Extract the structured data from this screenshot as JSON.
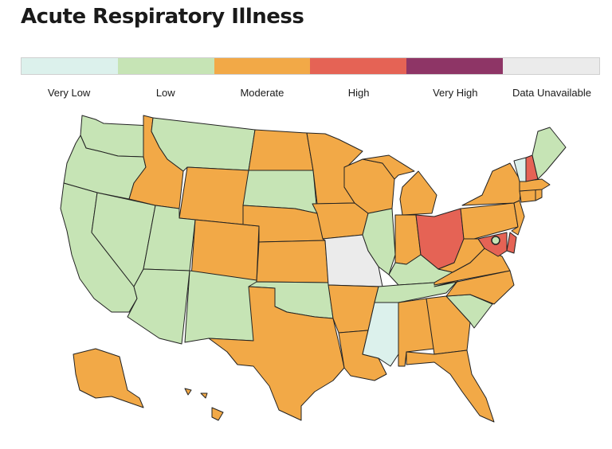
{
  "title": "Acute Respiratory Illness",
  "legend": [
    {
      "label": "Very Low",
      "color": "#dcf1ec"
    },
    {
      "label": "Low",
      "color": "#c6e4b5"
    },
    {
      "label": "Moderate",
      "color": "#f2a947"
    },
    {
      "label": "High",
      "color": "#e56355"
    },
    {
      "label": "Very High",
      "color": "#8e3566"
    },
    {
      "label": "Data Unavailable",
      "color": "#ebebeb"
    }
  ],
  "states": {
    "WA": "Low",
    "OR": "Low",
    "CA": "Low",
    "NV": "Low",
    "ID": "Moderate",
    "MT": "Low",
    "WY": "Moderate",
    "UT": "Low",
    "AZ": "Low",
    "CO": "Moderate",
    "NM": "Low",
    "ND": "Moderate",
    "SD": "Low",
    "NE": "Moderate",
    "KS": "Moderate",
    "OK": "Low",
    "TX": "Moderate",
    "MN": "Moderate",
    "IA": "Moderate",
    "MO": "Data Unavailable",
    "AR": "Moderate",
    "LA": "Moderate",
    "WI": "Moderate",
    "IL": "Low",
    "MI": "Moderate",
    "IN": "Moderate",
    "OH": "High",
    "KY": "Low",
    "TN": "Low",
    "MS": "Very Low",
    "AL": "Moderate",
    "GA": "Moderate",
    "FL": "Moderate",
    "SC": "Low",
    "NC": "Moderate",
    "VA": "Moderate",
    "WV": "Moderate",
    "PA": "Moderate",
    "NY": "Moderate",
    "NJ": "Moderate",
    "DE": "High",
    "MD": "High",
    "DC": "Low",
    "CT": "Moderate",
    "RI": "Moderate",
    "MA": "Moderate",
    "VT": "Very Low",
    "NH": "High",
    "ME": "Low",
    "AK": "Moderate",
    "HI": "Moderate"
  }
}
